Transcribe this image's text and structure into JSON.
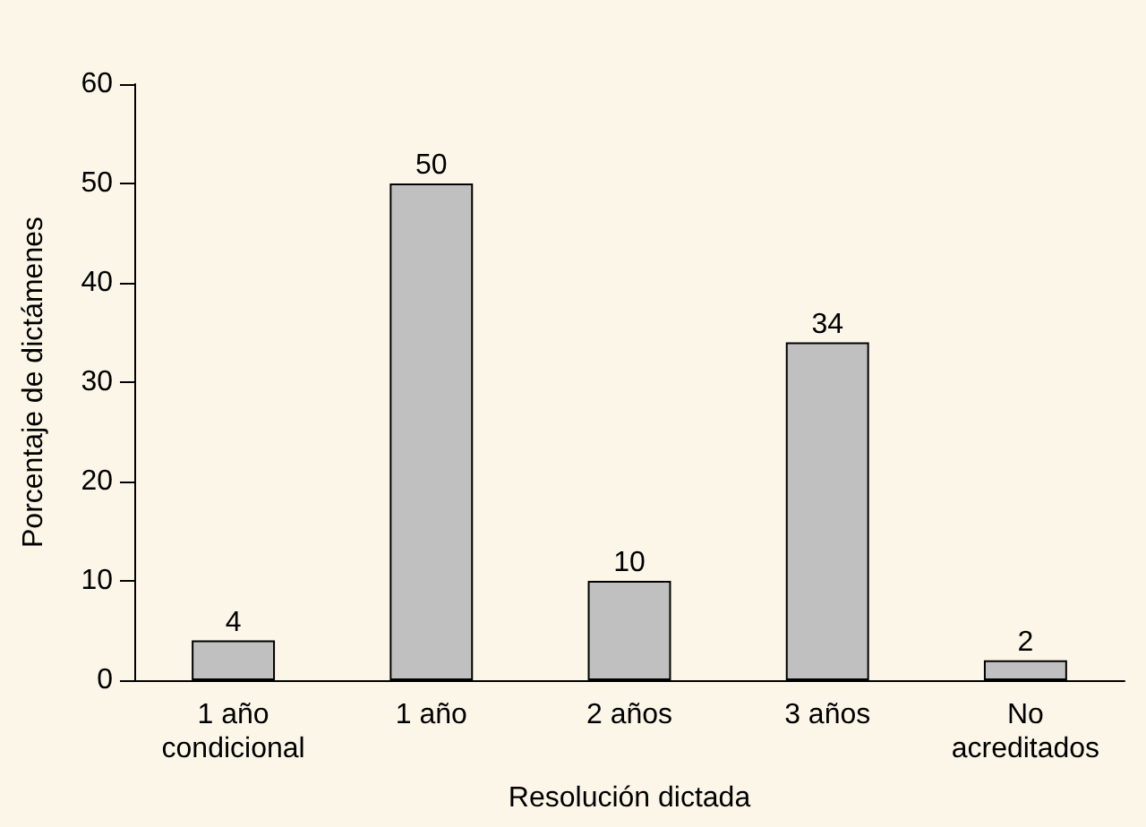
{
  "chart_data": {
    "type": "bar",
    "xlabel": "Resolución dictada",
    "ylabel": "Porcentaje de dictámenes",
    "categories": [
      "1 año\ncondicional",
      "1 año",
      "2 años",
      "3 años",
      "No\nacreditados"
    ],
    "values": [
      4,
      50,
      10,
      34,
      2
    ],
    "color": "#c0c0c0",
    "ylim": [
      0,
      60
    ],
    "yticks": [
      0,
      10,
      20,
      30,
      40,
      50,
      60
    ],
    "grid": false,
    "data_labels": true
  }
}
